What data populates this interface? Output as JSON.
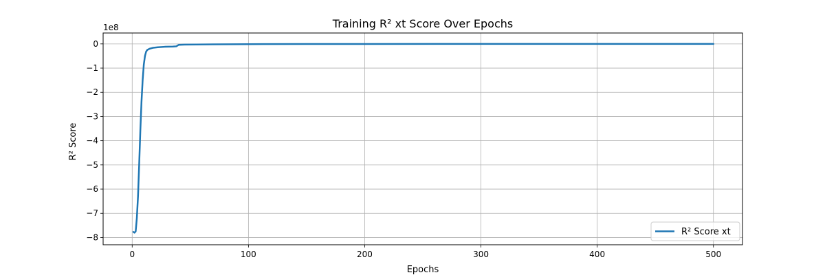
{
  "chart_data": {
    "type": "line",
    "title": "Training R² xt Score Over Epochs",
    "xlabel": "Epochs",
    "ylabel": "R² Score",
    "y_offset_label": "1e8",
    "y_scale_factor": 100000000,
    "xlim": [
      -25,
      525
    ],
    "ylim": [
      -8.3,
      0.45
    ],
    "xticks": [
      0,
      100,
      200,
      300,
      400,
      500
    ],
    "xtick_labels": [
      "0",
      "100",
      "200",
      "300",
      "400",
      "500"
    ],
    "yticks": [
      0,
      -1,
      -2,
      -3,
      -4,
      -5,
      -6,
      -7,
      -8
    ],
    "ytick_labels": [
      "0",
      "−1",
      "−2",
      "−3",
      "−4",
      "−5",
      "−6",
      "−7",
      "−8"
    ],
    "grid": true,
    "legend_position": "bottom-right",
    "series": [
      {
        "name": "R² Score xt",
        "color": "#1f77b4",
        "points": [
          [
            1,
            -7.77
          ],
          [
            2,
            -7.8
          ],
          [
            3,
            -7.75
          ],
          [
            4,
            -7.2
          ],
          [
            5,
            -6.3
          ],
          [
            6,
            -5.0
          ],
          [
            7,
            -3.6
          ],
          [
            8,
            -2.4
          ],
          [
            9,
            -1.5
          ],
          [
            10,
            -0.85
          ],
          [
            11,
            -0.5
          ],
          [
            12,
            -0.32
          ],
          [
            13,
            -0.25
          ],
          [
            15,
            -0.2
          ],
          [
            18,
            -0.16
          ],
          [
            22,
            -0.14
          ],
          [
            28,
            -0.12
          ],
          [
            35,
            -0.11
          ],
          [
            38,
            -0.1
          ],
          [
            40,
            -0.04
          ],
          [
            45,
            -0.03
          ],
          [
            55,
            -0.025
          ],
          [
            70,
            -0.02
          ],
          [
            100,
            -0.01
          ],
          [
            150,
            -0.005
          ],
          [
            200,
            -0.003
          ],
          [
            300,
            -0.002
          ],
          [
            400,
            -0.001
          ],
          [
            500,
            -0.001
          ]
        ]
      }
    ]
  }
}
